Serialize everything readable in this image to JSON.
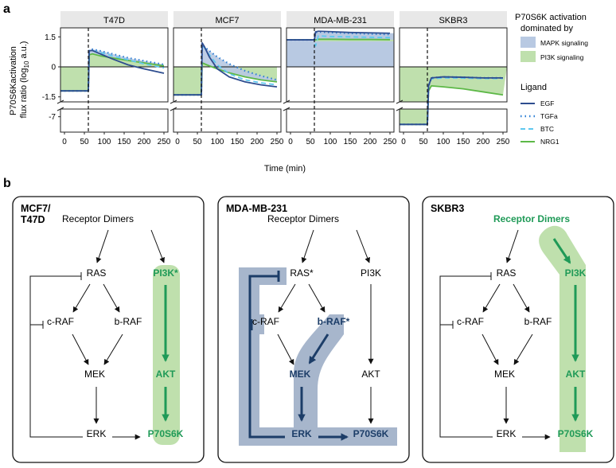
{
  "panel_a_label": "a",
  "panel_b_label": "b",
  "colors": {
    "mapk_fill": "#b8c9e2",
    "pi3k_fill": "#bfe0ad",
    "egf": "#2e4d8f",
    "tgfa": "#2e7fd4",
    "btc": "#5ec8ef",
    "nrg1": "#5db847",
    "mapk_path": "#a7b6cc",
    "mapk_arrow": "#1c3d68",
    "pi3k_path": "#bfe0ad",
    "pi3k_arrow": "#1f9a57"
  },
  "chart_data": {
    "type": "line",
    "ylabel_line1": "P70S6Kactivation",
    "ylabel_line2": "flux ratio (log",
    "ylabel_sub": "10",
    "ylabel_end": " a.u.)",
    "xlabel": "Time (min)",
    "xticks": [
      0,
      50,
      100,
      150,
      200,
      250
    ],
    "xlim": [
      -10,
      260
    ],
    "yticks_upper": [
      "1.5",
      "0",
      "-1.5"
    ],
    "yticks_upper_vals": [
      1.5,
      0,
      -1.5
    ],
    "ytick_lower": "-7",
    "ylim_upper": [
      -1.75,
      1.95
    ],
    "ylim_lower": [
      -7.6,
      -6.7
    ],
    "stimulus_time": 60,
    "legend": {
      "fill_title_line1": "P70S6K activation",
      "fill_title_line2": "dominated by",
      "fill_items": [
        "MAPK  signaling",
        "PI3K  signaling"
      ],
      "ligand_title": "Ligand",
      "ligand_items": [
        "EGF",
        "TGFa",
        "BTC",
        "NRG1"
      ]
    },
    "panels": [
      {
        "title": "T47D",
        "baseline": -1.2,
        "series": {
          "EGF": {
            "t": [
              60,
              62,
              70,
              90,
              120,
              160,
              200,
              250
            ],
            "y": [
              -1.2,
              0.8,
              0.82,
              0.65,
              0.4,
              0.1,
              -0.1,
              -0.32
            ]
          },
          "TGFa": {
            "t": [
              60,
              62,
              70,
              90,
              120,
              160,
              200,
              250
            ],
            "y": [
              -1.2,
              0.85,
              0.88,
              0.8,
              0.65,
              0.45,
              0.3,
              0.12
            ]
          },
          "BTC": {
            "t": [
              60,
              62,
              70,
              90,
              120,
              160,
              200,
              250
            ],
            "y": [
              -1.2,
              0.8,
              0.82,
              0.72,
              0.55,
              0.35,
              0.15,
              -0.05
            ]
          },
          "NRG1": {
            "t": [
              60,
              62,
              70,
              90,
              120,
              160,
              200,
              250
            ],
            "y": [
              -1.2,
              0.6,
              0.65,
              0.55,
              0.45,
              0.32,
              0.2,
              0.05
            ]
          }
        }
      },
      {
        "title": "MCF7",
        "baseline": -1.4,
        "series": {
          "EGF": {
            "t": [
              60,
              62,
              68,
              80,
              100,
              130,
              170,
              210,
              250
            ],
            "y": [
              -1.4,
              1.2,
              1.0,
              0.5,
              -0.1,
              -0.5,
              -0.75,
              -0.9,
              -1.0
            ]
          },
          "TGFa": {
            "t": [
              60,
              62,
              68,
              80,
              100,
              130,
              170,
              210,
              250
            ],
            "y": [
              -1.4,
              1.1,
              1.0,
              0.8,
              0.5,
              0.15,
              -0.2,
              -0.45,
              -0.65
            ]
          },
          "BTC": {
            "t": [
              60,
              62,
              68,
              80,
              100,
              130,
              170,
              210,
              250
            ],
            "y": [
              -1.4,
              1.1,
              0.95,
              0.6,
              0.1,
              -0.35,
              -0.65,
              -0.8,
              -0.9
            ]
          },
          "NRG1": {
            "t": [
              60,
              62,
              68,
              80,
              100,
              130,
              170,
              210,
              250
            ],
            "y": [
              -1.4,
              0.2,
              0.15,
              0.05,
              -0.1,
              -0.3,
              -0.5,
              -0.65,
              -0.75
            ]
          }
        }
      },
      {
        "title": "MDA-MB-231",
        "baseline": 1.35,
        "series": {
          "EGF": {
            "t": [
              0,
              60,
              63,
              70,
              100,
              150,
              200,
              250
            ],
            "y": [
              1.35,
              1.35,
              1.75,
              1.78,
              1.76,
              1.72,
              1.7,
              1.68
            ]
          },
          "TGFa": {
            "t": [
              0,
              60,
              63,
              70,
              100,
              150,
              200,
              250
            ],
            "y": [
              1.35,
              1.35,
              1.72,
              1.75,
              1.72,
              1.68,
              1.65,
              1.62
            ]
          },
          "BTC": {
            "t": [
              0,
              60,
              63,
              70,
              100,
              150,
              200,
              250
            ],
            "y": [
              1.35,
              1.35,
              1.05,
              1.55,
              1.52,
              1.5,
              1.48,
              1.46
            ]
          },
          "NRG1": {
            "t": [
              0,
              60,
              63,
              70,
              100,
              150,
              200,
              250
            ],
            "y": [
              1.35,
              1.35,
              1.35,
              1.38,
              1.38,
              1.37,
              1.37,
              1.36
            ]
          }
        }
      },
      {
        "title": "SKBR3",
        "baseline": -7.3,
        "series": {
          "EGF": {
            "t": [
              0,
              60,
              63,
              70,
              100,
              150,
              200,
              250
            ],
            "y": [
              -7.3,
              -7.3,
              -0.95,
              -0.55,
              -0.5,
              -0.52,
              -0.55,
              -0.55
            ]
          },
          "TGFa": {
            "t": [
              0,
              60,
              63,
              70,
              100,
              150,
              200,
              250
            ],
            "y": [
              -7.3,
              -7.3,
              -0.95,
              -0.55,
              -0.5,
              -0.52,
              -0.55,
              -0.55
            ]
          },
          "BTC": {
            "t": [
              0,
              60,
              63,
              70,
              100,
              150,
              200,
              250
            ],
            "y": [
              -7.3,
              -7.3,
              -0.95,
              -0.6,
              -0.55,
              -0.56,
              -0.58,
              -0.58
            ]
          },
          "NRG1": {
            "t": [
              0,
              60,
              63,
              70,
              100,
              150,
              200,
              250
            ],
            "y": [
              -7.3,
              -7.3,
              -1.2,
              -0.95,
              -1.0,
              -1.1,
              -1.25,
              -1.4
            ]
          }
        }
      }
    ]
  },
  "diagrams": [
    {
      "title_line1": "MCF7/",
      "title_line2": "T47D",
      "receptor": "Receptor Dimers",
      "ras": "RAS",
      "pi3k": "PI3K*",
      "craf": "c-RAF",
      "braf": "b-RAF",
      "mek": "MEK",
      "akt": "AKT",
      "erk": "ERK",
      "p70": "P70S6K"
    },
    {
      "title_line1": "MDA-MB-231",
      "receptor": "Receptor Dimers",
      "ras": "RAS*",
      "pi3k": "PI3K",
      "craf": "c-RAF",
      "braf": "b-RAF*",
      "mek": "MEK",
      "akt": "AKT",
      "erk": "ERK",
      "p70": "P70S6K"
    },
    {
      "title_line1": "SKBR3",
      "receptor": "Receptor Dimers",
      "ras": "RAS",
      "pi3k": "PI3K",
      "craf": "c-RAF",
      "braf": "b-RAF",
      "mek": "MEK",
      "akt": "AKT",
      "erk": "ERK",
      "p70": "P70S6K"
    }
  ]
}
